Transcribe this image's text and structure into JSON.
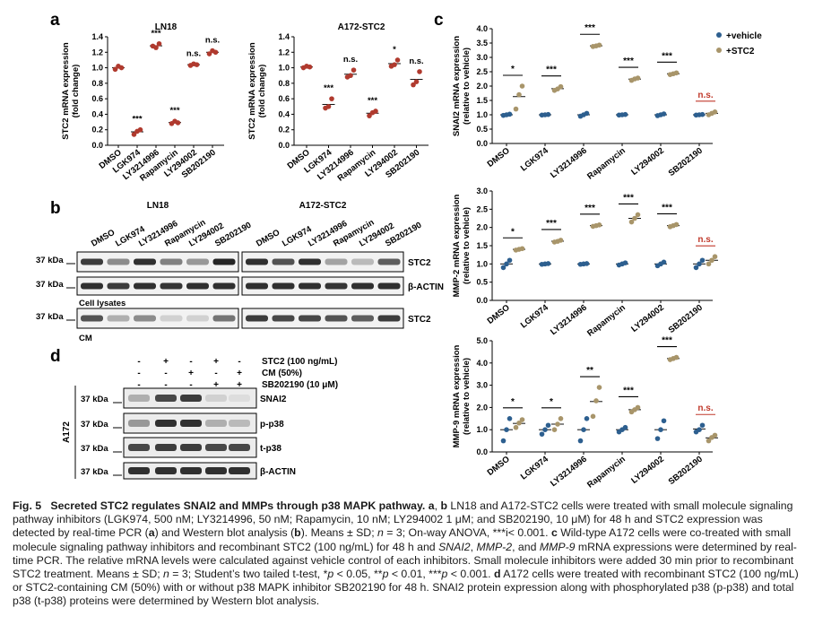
{
  "figure": {
    "panel_letters": [
      "a",
      "b",
      "c",
      "d"
    ],
    "colors": {
      "red": "#b03a2e",
      "blue": "#2d5f8f",
      "tan": "#a8956a",
      "sig_black": "#000000",
      "sig_red": "#c0392b"
    },
    "panel_a": {
      "ylabel": [
        "STC2 mRNA expression",
        "(fold change)"
      ],
      "categories": [
        "DMSO",
        "LGK974",
        "LY3214996",
        "Rapamycin",
        "LY294002",
        "SB202190"
      ],
      "yticks": [
        "0.0",
        "0.2",
        "0.4",
        "0.6",
        "0.8",
        "1.0",
        "1.2",
        "1.4"
      ]
    },
    "panel_b": {
      "titles": [
        "LN18",
        "A172-STC2"
      ],
      "lanes": [
        "DMSO",
        "LGK974",
        "LY3214996",
        "Rapamycin",
        "LY294002",
        "SB202190"
      ],
      "markers": [
        "37 kDa",
        "37 kDa",
        "37 kDa"
      ],
      "bands": [
        "STC2",
        "β-ACTIN",
        "STC2"
      ],
      "section_labels": [
        "Cell lysates",
        "CM"
      ]
    },
    "panel_c": {
      "legend": [
        "+vehicle",
        "+STC2"
      ],
      "categories": [
        "DMSO",
        "LGK974",
        "LY3214996",
        "Rapamycin",
        "LY294002",
        "SB202190"
      ]
    },
    "panel_d": {
      "conditions": [
        {
          "label": "STC2 (100 ng/mL)",
          "signs": [
            "-",
            "+",
            "-",
            "+",
            "-"
          ]
        },
        {
          "label": "CM (50%)",
          "signs": [
            "-",
            "-",
            "+",
            "-",
            "+"
          ]
        },
        {
          "label": "SB202190 (10 μM)",
          "signs": [
            "-",
            "-",
            "-",
            "+",
            "+"
          ]
        }
      ],
      "markers": [
        "37 kDa",
        "37 kDa",
        "37 kDa",
        "37 kDa"
      ],
      "bands": [
        "SNAI2",
        "p-p38",
        "t-p38",
        "β-ACTIN"
      ],
      "cell_label": "A172"
    }
  },
  "chart_data": [
    {
      "type": "scatter",
      "title": "LN18",
      "ylabel": "STC2 mRNA expression (fold change)",
      "ylim": [
        0,
        1.4
      ],
      "categories": [
        "DMSO",
        "LGK974",
        "LY3214996",
        "Rapamycin",
        "LY294002",
        "SB202190"
      ],
      "series": [
        {
          "points": [
            [
              0.98,
              1.02,
              1.0
            ],
            [
              0.14,
              0.18,
              0.2
            ],
            [
              1.28,
              1.26,
              1.31
            ],
            [
              0.28,
              0.31,
              0.29
            ],
            [
              1.03,
              1.05,
              1.04
            ],
            [
              1.18,
              1.22,
              1.2
            ]
          ]
        }
      ],
      "significance": [
        "",
        "***",
        "***",
        "***",
        "n.s.",
        "n.s."
      ]
    },
    {
      "type": "scatter",
      "title": "A172-STC2",
      "ylabel": "STC2 mRNA expression (fold change)",
      "ylim": [
        0,
        1.4
      ],
      "categories": [
        "DMSO",
        "LGK974",
        "LY3214996",
        "Rapamycin",
        "LY294002",
        "SB202190"
      ],
      "series": [
        {
          "points": [
            [
              1.0,
              1.02,
              1.01
            ],
            [
              0.48,
              0.5,
              0.6
            ],
            [
              0.88,
              0.9,
              0.97
            ],
            [
              0.38,
              0.42,
              0.44
            ],
            [
              1.02,
              1.04,
              1.1
            ],
            [
              0.78,
              0.82,
              0.95
            ]
          ]
        }
      ],
      "significance": [
        "",
        "***",
        "n.s.",
        "***",
        "*",
        "n.s."
      ]
    },
    {
      "type": "scatter",
      "ylabel": "SNAI2 mRNA expression (relative to vehicle)",
      "ylim": [
        0,
        4.0
      ],
      "yticks": [
        "0.0",
        "0.5",
        "1.0",
        "1.5",
        "2.0",
        "2.5",
        "3.0",
        "3.5",
        "4.0"
      ],
      "categories": [
        "DMSO",
        "LGK974",
        "LY3214996",
        "Rapamycin",
        "LY294002",
        "SB202190"
      ],
      "series": [
        {
          "name": "+vehicle",
          "points": [
            [
              0.98,
              1.0,
              1.02
            ],
            [
              0.99,
              1.0,
              1.01
            ],
            [
              0.95,
              1.0,
              1.05
            ],
            [
              0.99,
              1.0,
              1.01
            ],
            [
              0.97,
              1.0,
              1.03
            ],
            [
              0.99,
              1.0,
              1.01
            ]
          ]
        },
        {
          "name": "+STC2",
          "points": [
            [
              1.2,
              1.7,
              2.0
            ],
            [
              1.85,
              1.9,
              1.98
            ],
            [
              3.38,
              3.4,
              3.43
            ],
            [
              2.2,
              2.25,
              2.28
            ],
            [
              2.4,
              2.43,
              2.46
            ],
            [
              1.0,
              1.05,
              1.1
            ]
          ]
        }
      ],
      "significance": [
        "*",
        "***",
        "***",
        "***",
        "***",
        "n.s."
      ]
    },
    {
      "type": "scatter",
      "ylabel": "MMP-2 mRNA expression (relative to vehicle)",
      "ylim": [
        0,
        3.0
      ],
      "yticks": [
        "0.0",
        "0.5",
        "1.0",
        "1.5",
        "2.0",
        "2.5",
        "3.0"
      ],
      "categories": [
        "DMSO",
        "LGK974",
        "LY3214996",
        "Rapamycin",
        "LY294002",
        "SB202190"
      ],
      "series": [
        {
          "name": "+vehicle",
          "points": [
            [
              0.9,
              1.0,
              1.1
            ],
            [
              0.99,
              1.0,
              1.01
            ],
            [
              0.99,
              1.0,
              1.01
            ],
            [
              0.97,
              1.0,
              1.03
            ],
            [
              0.95,
              1.0,
              1.05
            ],
            [
              0.9,
              1.0,
              1.1
            ]
          ]
        },
        {
          "name": "+STC2",
          "points": [
            [
              1.38,
              1.4,
              1.42
            ],
            [
              1.6,
              1.62,
              1.65
            ],
            [
              2.03,
              2.05,
              2.07
            ],
            [
              2.15,
              2.25,
              2.35
            ],
            [
              2.02,
              2.05,
              2.08
            ],
            [
              1.0,
              1.1,
              1.2
            ]
          ]
        }
      ],
      "significance": [
        "*",
        "***",
        "***",
        "***",
        "***",
        "n.s."
      ]
    },
    {
      "type": "scatter",
      "ylabel": "MMP-9 mRNA expression (relative to vehicle)",
      "ylim": [
        0,
        5.0
      ],
      "yticks": [
        "0.0",
        "1.0",
        "2.0",
        "3.0",
        "4.0",
        "5.0"
      ],
      "categories": [
        "DMSO",
        "LGK974",
        "LY3214996",
        "Rapamycin",
        "LY294002",
        "SB202190"
      ],
      "series": [
        {
          "name": "+vehicle",
          "points": [
            [
              0.5,
              1.0,
              1.5
            ],
            [
              0.8,
              1.0,
              1.2
            ],
            [
              0.5,
              1.0,
              1.5
            ],
            [
              0.9,
              1.0,
              1.1
            ],
            [
              0.6,
              1.0,
              1.4
            ],
            [
              0.9,
              1.0,
              1.2
            ]
          ]
        },
        {
          "name": "+STC2",
          "points": [
            [
              1.1,
              1.3,
              1.45
            ],
            [
              1.0,
              1.25,
              1.5
            ],
            [
              1.6,
              2.3,
              2.9
            ],
            [
              1.8,
              1.9,
              2.0
            ],
            [
              4.15,
              4.2,
              4.25
            ],
            [
              0.5,
              0.65,
              0.75
            ]
          ]
        }
      ],
      "significance": [
        "*",
        "*",
        "**",
        "***",
        "***",
        "n.s."
      ]
    }
  ],
  "caption": {
    "lead": "Fig. 5",
    "title": "Secreted STC2 regulates SNAI2 and MMPs through p38 MAPK pathway.",
    "body_html": "<b>a</b>, <b>b</b> LN18 and A172-STC2 cells were treated with small molecule signaling pathway inhibitors (LGK974, 500 nM; LY3214996, 50 nM; Rapamycin, 10 nM; LY294002 1 μM; and SB202190, 10 μM) for 48 h and STC2 expression was detected by real-time PCR (<b>a</b>) and Western blot analysis (<b>b</b>). Means ± SD; <i>n</i> = 3; On-way ANOVA, ***i&lt; 0.001. <b>c</b> Wild-type A172 cells were co-treated with small molecule signaling pathway inhibitors and recombinant STC2 (100 ng/mL) for 48 h and <i>SNAI2</i>, <i>MMP-2</i>, and <i>MMP-9</i> mRNA expressions were determined by real-time PCR. The relative mRNA levels were calculated against vehicle control of each inhibitors. Small molecule inhibitors were added 30 min prior to recombinant STC2 treatment. Means ± SD; <i>n</i> = 3; Student’s two tailed t-test, *<i>p</i> &lt; 0.05, **<i>p</i> &lt; 0.01, ***<i>p</i> &lt; 0.001. <b>d</b> A172 cells were treated with recombinant STC2 (100 ng/mL) or STC2-containing CM (50%) with or without p38 MAPK inhibitor SB202190 for 48 h. SNAI2 protein expression along with phosphorylated p38 (p-p38) and total p38 (t-p38) proteins were determined by Western blot analysis."
  }
}
